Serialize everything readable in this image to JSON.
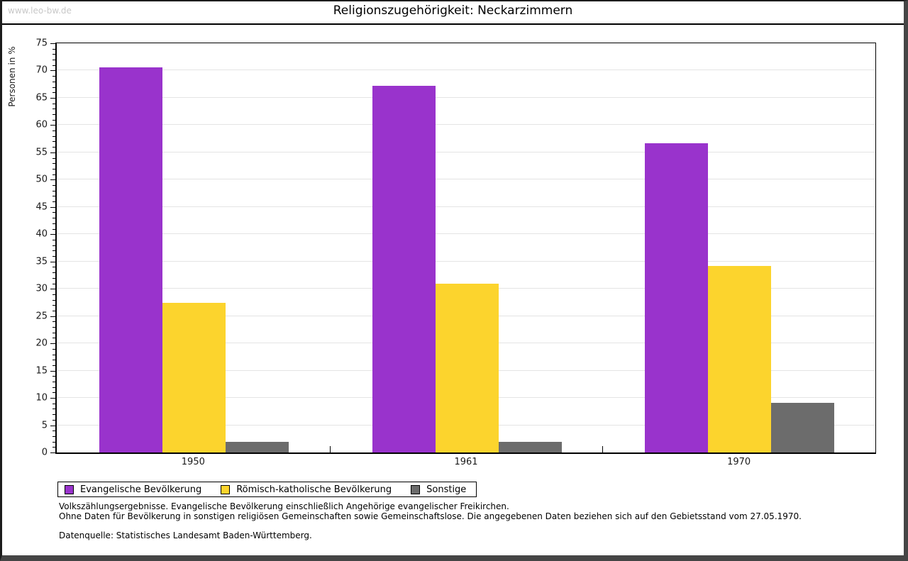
{
  "page": {
    "watermark": "www.leo-bw.de",
    "title": "Religionszugehörigkeit: Neckarzimmern"
  },
  "chart_data": {
    "type": "bar",
    "title": "Religionszugehörigkeit: Neckarzimmern",
    "categories": [
      "1950",
      "1961",
      "1970"
    ],
    "series": [
      {
        "name": "Evangelische Bevölkerung",
        "color": "#9933cc",
        "values": [
          70.6,
          67.2,
          56.7
        ]
      },
      {
        "name": "Römisch-katholische Bevölkerung",
        "color": "#fcd42d",
        "values": [
          27.4,
          30.9,
          34.2
        ]
      },
      {
        "name": "Sonstige",
        "color": "#6c6c6c",
        "values": [
          2.0,
          1.9,
          9.1
        ]
      }
    ],
    "xlabel": "",
    "ylabel": "Personen in %",
    "ylim": [
      0,
      75
    ],
    "ytick_step": 5,
    "ytick_minor_step": 1,
    "grid": true,
    "legend_position": "bottom-left"
  },
  "footer": {
    "note_line1": "Volkszählungsergebnisse. Evangelische Bevölkerung einschließlich Angehörige evangelischer Freikirchen.",
    "note_line2": "Ohne Daten für Bevölkerung in sonstigen religiösen Gemeinschaften sowie Gemeinschaftslose. Die angegebenen Daten beziehen sich auf den Gebietsstand vom 27.05.1970.",
    "source": "Datenquelle: Statistisches Landesamt Baden-Württemberg."
  }
}
